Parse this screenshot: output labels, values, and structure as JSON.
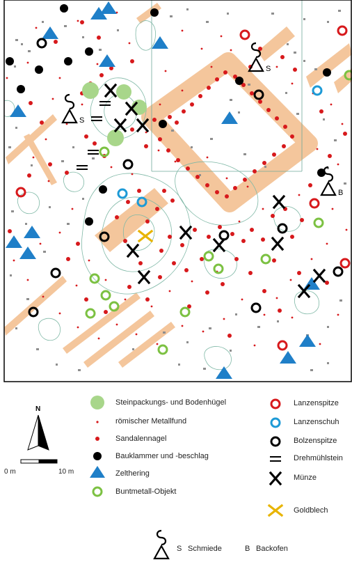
{
  "legend": {
    "left": [
      {
        "label": "Steinpackungs- und Bodenhügel",
        "symbol": "hill",
        "color": "#a8d68a"
      },
      {
        "label": "römischer Metallfund",
        "symbol": "small-dot",
        "color": "#d7191c"
      },
      {
        "label": "Sandalennagel",
        "symbol": "dot",
        "color": "#d7191c"
      },
      {
        "label": "Bauklammer und -beschlag",
        "symbol": "black-dot",
        "color": "#000000"
      },
      {
        "label": "Zelthering",
        "symbol": "triangle",
        "color": "#1f7fc8"
      },
      {
        "label": "Buntmetall-Objekt",
        "symbol": "green-ring",
        "color": "#7cc142"
      }
    ],
    "right": [
      {
        "label": "Lanzenspitze",
        "symbol": "red-ring",
        "color": "#d7191c"
      },
      {
        "label": "Lanzenschuh",
        "symbol": "blue-ring",
        "color": "#1d9ad6"
      },
      {
        "label": "Bolzenspitze",
        "symbol": "black-ring",
        "color": "#000000"
      },
      {
        "label": "Drehmühlstein",
        "symbol": "double-bar",
        "color": "#000000"
      },
      {
        "label": "Münze",
        "symbol": "x",
        "color": "#000000"
      },
      {
        "label": "Goldblech",
        "symbol": "gold-x",
        "color": "#e8b400"
      }
    ],
    "bottom": {
      "schmiede_letter": "S",
      "schmiede_label": "Schmiede",
      "backofen_letter": "B",
      "backofen_label": "Backofen"
    }
  },
  "map_labels": {
    "smithy_1": "S",
    "smithy_2": "S",
    "oven": "B"
  },
  "north": {
    "label": "N"
  },
  "scale": {
    "start": "0 m",
    "end": "10 m"
  },
  "colors": {
    "trench": "#f4c69c",
    "contour": "#7fb8a6",
    "frame": "#000000"
  }
}
